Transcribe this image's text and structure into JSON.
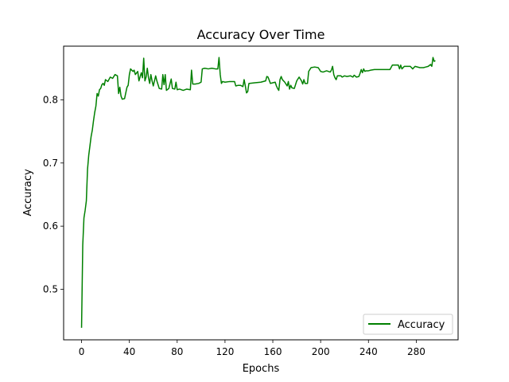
{
  "chart_data": {
    "type": "line",
    "title": "Accuracy Over Time",
    "xlabel": "Epochs",
    "ylabel": "Accuracy",
    "xlim": [
      -15,
      315
    ],
    "ylim": [
      0.42,
      0.885
    ],
    "x_ticks": [
      0,
      40,
      80,
      120,
      160,
      200,
      240,
      280
    ],
    "y_ticks": [
      0.5,
      0.6,
      0.7,
      0.8
    ],
    "y_tick_labels": [
      "0.5",
      "0.6",
      "0.7",
      "0.8"
    ],
    "grid": false,
    "legend_position": "lower-right",
    "series": [
      {
        "name": "Accuracy",
        "color": "#008000",
        "points": [
          [
            0,
            0.439
          ],
          [
            1,
            0.57
          ],
          [
            2,
            0.613
          ],
          [
            3,
            0.625
          ],
          [
            4,
            0.64
          ],
          [
            5,
            0.69
          ],
          [
            6,
            0.712
          ],
          [
            7,
            0.727
          ],
          [
            8,
            0.742
          ],
          [
            9,
            0.752
          ],
          [
            10,
            0.767
          ],
          [
            11,
            0.78
          ],
          [
            12,
            0.79
          ],
          [
            13,
            0.81
          ],
          [
            14,
            0.806
          ],
          [
            15,
            0.816
          ],
          [
            16,
            0.818
          ],
          [
            17,
            0.824
          ],
          [
            18,
            0.826
          ],
          [
            19,
            0.823
          ],
          [
            20,
            0.832
          ],
          [
            22,
            0.829
          ],
          [
            24,
            0.836
          ],
          [
            26,
            0.834
          ],
          [
            28,
            0.84
          ],
          [
            30,
            0.838
          ],
          [
            31,
            0.81
          ],
          [
            32,
            0.82
          ],
          [
            33,
            0.806
          ],
          [
            34,
            0.801
          ],
          [
            36,
            0.802
          ],
          [
            38,
            0.82
          ],
          [
            39,
            0.823
          ],
          [
            40,
            0.84
          ],
          [
            41,
            0.849
          ],
          [
            43,
            0.845
          ],
          [
            44,
            0.847
          ],
          [
            45,
            0.84
          ],
          [
            47,
            0.845
          ],
          [
            48,
            0.83
          ],
          [
            50,
            0.843
          ],
          [
            51,
            0.835
          ],
          [
            52,
            0.866
          ],
          [
            53,
            0.83
          ],
          [
            54,
            0.836
          ],
          [
            55,
            0.85
          ],
          [
            56,
            0.835
          ],
          [
            57,
            0.826
          ],
          [
            58,
            0.84
          ],
          [
            59,
            0.83
          ],
          [
            60,
            0.822
          ],
          [
            62,
            0.838
          ],
          [
            63,
            0.83
          ],
          [
            65,
            0.818
          ],
          [
            67,
            0.817
          ],
          [
            68,
            0.84
          ],
          [
            69,
            0.824
          ],
          [
            70,
            0.84
          ],
          [
            71,
            0.815
          ],
          [
            73,
            0.818
          ],
          [
            75,
            0.833
          ],
          [
            76,
            0.818
          ],
          [
            78,
            0.817
          ],
          [
            79,
            0.828
          ],
          [
            80,
            0.816
          ],
          [
            82,
            0.817
          ],
          [
            85,
            0.815
          ],
          [
            88,
            0.817
          ],
          [
            91,
            0.816
          ],
          [
            92,
            0.847
          ],
          [
            93,
            0.825
          ],
          [
            95,
            0.825
          ],
          [
            98,
            0.826
          ],
          [
            100,
            0.828
          ],
          [
            101,
            0.849
          ],
          [
            103,
            0.85
          ],
          [
            106,
            0.849
          ],
          [
            109,
            0.85
          ],
          [
            112,
            0.849
          ],
          [
            114,
            0.849
          ],
          [
            115,
            0.867
          ],
          [
            116,
            0.84
          ],
          [
            117,
            0.826
          ],
          [
            118,
            0.829
          ],
          [
            120,
            0.828
          ],
          [
            124,
            0.829
          ],
          [
            128,
            0.829
          ],
          [
            129,
            0.822
          ],
          [
            131,
            0.823
          ],
          [
            133,
            0.823
          ],
          [
            135,
            0.821
          ],
          [
            136,
            0.832
          ],
          [
            137,
            0.822
          ],
          [
            138,
            0.811
          ],
          [
            139,
            0.813
          ],
          [
            140,
            0.826
          ],
          [
            145,
            0.827
          ],
          [
            150,
            0.828
          ],
          [
            154,
            0.83
          ],
          [
            155,
            0.837
          ],
          [
            156,
            0.836
          ],
          [
            158,
            0.826
          ],
          [
            160,
            0.827
          ],
          [
            162,
            0.828
          ],
          [
            163,
            0.822
          ],
          [
            164,
            0.818
          ],
          [
            165,
            0.815
          ],
          [
            166,
            0.832
          ],
          [
            167,
            0.837
          ],
          [
            168,
            0.832
          ],
          [
            170,
            0.828
          ],
          [
            172,
            0.822
          ],
          [
            173,
            0.829
          ],
          [
            174,
            0.817
          ],
          [
            175,
            0.823
          ],
          [
            176,
            0.819
          ],
          [
            178,
            0.818
          ],
          [
            180,
            0.83
          ],
          [
            182,
            0.836
          ],
          [
            184,
            0.83
          ],
          [
            185,
            0.825
          ],
          [
            186,
            0.832
          ],
          [
            187,
            0.826
          ],
          [
            188,
            0.826
          ],
          [
            189,
            0.826
          ],
          [
            190,
            0.845
          ],
          [
            192,
            0.851
          ],
          [
            195,
            0.852
          ],
          [
            198,
            0.851
          ],
          [
            200,
            0.845
          ],
          [
            202,
            0.844
          ],
          [
            205,
            0.846
          ],
          [
            208,
            0.844
          ],
          [
            209,
            0.847
          ],
          [
            210,
            0.853
          ],
          [
            211,
            0.84
          ],
          [
            212,
            0.835
          ],
          [
            213,
            0.832
          ],
          [
            214,
            0.838
          ],
          [
            217,
            0.838
          ],
          [
            218,
            0.836
          ],
          [
            220,
            0.838
          ],
          [
            222,
            0.837
          ],
          [
            225,
            0.838
          ],
          [
            227,
            0.836
          ],
          [
            228,
            0.839
          ],
          [
            230,
            0.836
          ],
          [
            232,
            0.837
          ],
          [
            233,
            0.842
          ],
          [
            234,
            0.848
          ],
          [
            235,
            0.843
          ],
          [
            236,
            0.849
          ],
          [
            237,
            0.845
          ],
          [
            238,
            0.846
          ],
          [
            240,
            0.846
          ],
          [
            242,
            0.847
          ],
          [
            245,
            0.848
          ],
          [
            250,
            0.848
          ],
          [
            255,
            0.848
          ],
          [
            258,
            0.848
          ],
          [
            260,
            0.855
          ],
          [
            265,
            0.855
          ],
          [
            266,
            0.849
          ],
          [
            267,
            0.855
          ],
          [
            268,
            0.849
          ],
          [
            270,
            0.853
          ],
          [
            275,
            0.853
          ],
          [
            277,
            0.849
          ],
          [
            279,
            0.853
          ],
          [
            283,
            0.851
          ],
          [
            286,
            0.851
          ],
          [
            288,
            0.852
          ],
          [
            290,
            0.853
          ],
          [
            292,
            0.856
          ],
          [
            293,
            0.853
          ],
          [
            294,
            0.867
          ],
          [
            295,
            0.861
          ],
          [
            296,
            0.862
          ]
        ]
      }
    ]
  }
}
